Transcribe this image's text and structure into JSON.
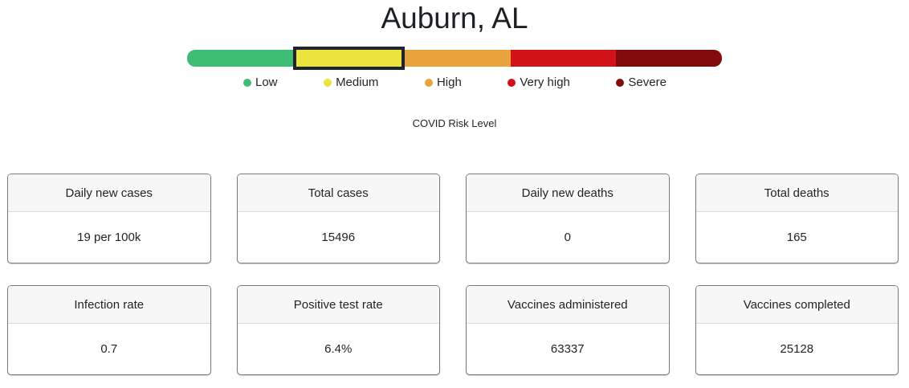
{
  "page": {
    "title": "Auburn, AL",
    "risk_caption": "COVID Risk Level"
  },
  "risk": {
    "current_level": "Medium",
    "highlight_border_color": "#1f242c",
    "levels": [
      {
        "label": "Low",
        "color": "#3dbd74",
        "selected": false
      },
      {
        "label": "Medium",
        "color": "#ebe43f",
        "selected": true
      },
      {
        "label": "High",
        "color": "#e8a33c",
        "selected": false
      },
      {
        "label": "Very high",
        "color": "#d11319",
        "selected": false
      },
      {
        "label": "Severe",
        "color": "#820b0b",
        "selected": false
      }
    ]
  },
  "stats": [
    {
      "label": "Daily new cases",
      "value": "19 per 100k"
    },
    {
      "label": "Total cases",
      "value": "15496"
    },
    {
      "label": "Daily new deaths",
      "value": "0"
    },
    {
      "label": "Total deaths",
      "value": "165"
    },
    {
      "label": "Infection rate",
      "value": "0.7"
    },
    {
      "label": "Positive test rate",
      "value": "6.4%"
    },
    {
      "label": "Vaccines administered",
      "value": "63337"
    },
    {
      "label": "Vaccines completed",
      "value": "25128"
    }
  ]
}
